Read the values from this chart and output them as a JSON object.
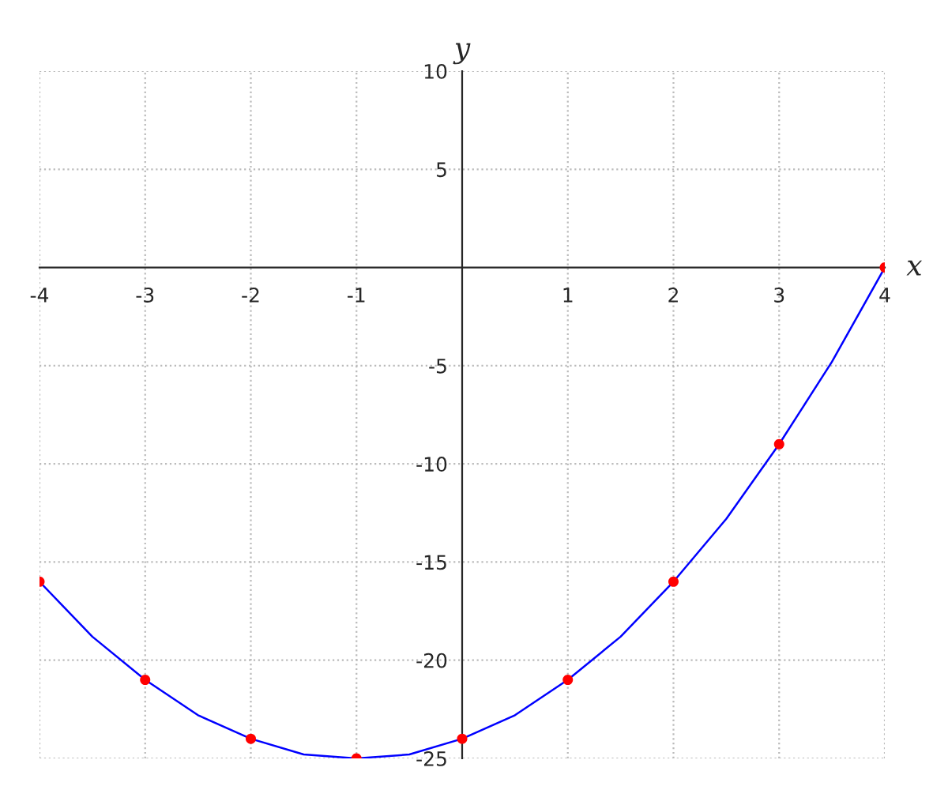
{
  "chart_data": {
    "type": "line",
    "xlabel": "x",
    "ylabel": "y",
    "xlim": [
      -4,
      4
    ],
    "ylim": [
      -25,
      10
    ],
    "xticks": [
      -4,
      -3,
      -2,
      -1,
      1,
      2,
      3,
      4
    ],
    "yticks": [
      -25,
      -20,
      -15,
      -10,
      -5,
      5,
      10
    ],
    "grid": true,
    "series": [
      {
        "color": "#0000ff",
        "marker": "none",
        "x": [
          -4,
          -3.5,
          -3,
          -2.5,
          -2,
          -1.5,
          -1,
          -0.5,
          0,
          0.5,
          1,
          1.5,
          2,
          2.5,
          3,
          3.5,
          4
        ],
        "values": [
          -16,
          -18.8,
          -21,
          -22.8,
          -24,
          -24.8,
          -25,
          -24.8,
          -24,
          -22.8,
          -21,
          -18.8,
          -16,
          -12.8,
          -9,
          -4.8,
          0
        ]
      },
      {
        "type": "scatter",
        "color": "#ff0000",
        "marker": "circle",
        "x": [
          -4,
          -3,
          -2,
          -1,
          0,
          1,
          2,
          3,
          4
        ],
        "values": [
          -16,
          -21,
          -24,
          -25,
          -24,
          -21,
          -16,
          -9,
          0
        ]
      }
    ]
  }
}
